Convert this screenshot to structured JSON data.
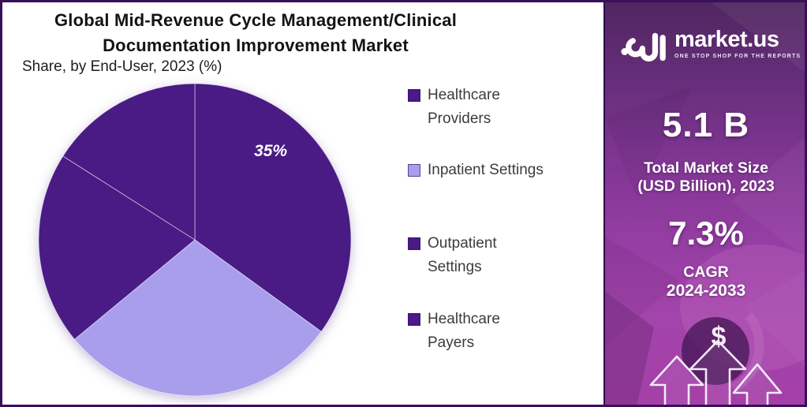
{
  "header": {
    "title": "Global Mid-Revenue Cycle Management/Clinical Documentation Improvement Market",
    "subtitle": "Share, by End-User, 2023 (%)"
  },
  "chart_data": {
    "type": "pie",
    "title": "Global Mid-Revenue Cycle Management/Clinical Documentation Improvement Market",
    "subtitle": "Share, by End-User, 2023 (%)",
    "unit": "%",
    "direction": "clockwise",
    "start_angle_deg": 0,
    "legend_position": "right",
    "slices": [
      {
        "label": "Healthcare Providers",
        "value": 35,
        "data_label": "35%",
        "color": "#4A1A85"
      },
      {
        "label": "Inpatient Settings",
        "value": 29,
        "data_label": "",
        "color": "#A89EEC"
      },
      {
        "label": "Outpatient Settings",
        "value": 20,
        "data_label": "",
        "color": "#4A1A85"
      },
      {
        "label": "Healthcare Payers",
        "value": 16,
        "data_label": "",
        "color": "#4A1A85"
      }
    ]
  },
  "legend": {
    "items": [
      {
        "lines": [
          "Healthcare",
          "Providers"
        ]
      },
      {
        "lines": [
          "Inpatient Settings"
        ]
      },
      {
        "lines": [
          "Outpatient",
          "Settings"
        ]
      },
      {
        "lines": [
          "Healthcare",
          "Payers"
        ]
      }
    ]
  },
  "sidebar": {
    "logo": {
      "brand": "market.us",
      "tagline": "ONE STOP SHOP FOR THE REPORTS"
    },
    "stats": [
      {
        "value": "5.1 B",
        "caption_lines": [
          "Total Market Size",
          "(USD Billion), 2023"
        ]
      },
      {
        "value": "7.3%",
        "caption_lines": [
          "CAGR",
          "2024-2033"
        ]
      }
    ],
    "dollar_symbol": "$"
  },
  "colors": {
    "frame_border": "#38105A",
    "panel_bg": "#FFFFFF",
    "pie_dark": "#4A1A85",
    "pie_light": "#A89EEC",
    "legend_text": "#3C3C3C",
    "sidebar_top": "#50265F",
    "sidebar_bottom": "#A53FA8"
  }
}
